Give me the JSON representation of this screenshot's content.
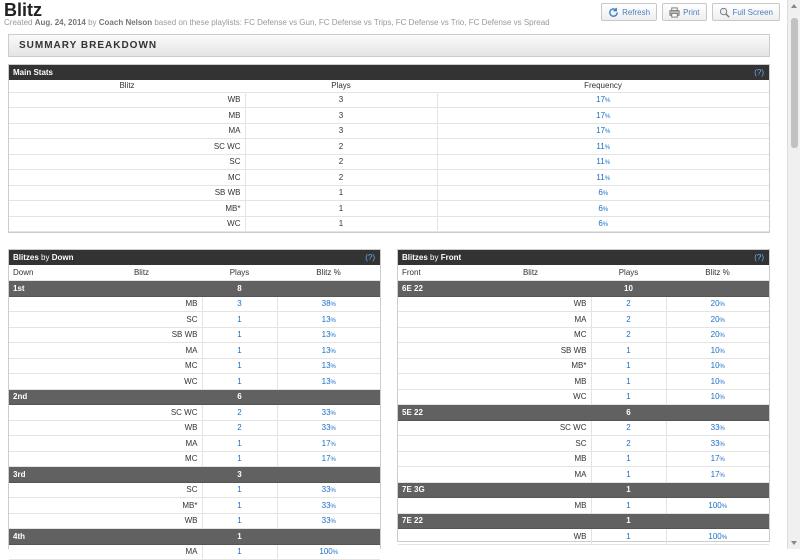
{
  "header": {
    "title": "Blitz",
    "created_prefix": "Created",
    "created_date": "Aug. 24, 2014",
    "by_word": "by",
    "author": "Coach Nelson",
    "playlists_text": "based on these playlists: FC Defense vs Gun, FC Defense vs Trips, FC Defense vs Trio, FC Defense vs Spread"
  },
  "buttons": {
    "refresh": "Refresh",
    "print": "Print",
    "fullscreen": "Full Screen"
  },
  "summary_title": "SUMMARY BREAKDOWN",
  "help_label": "(?)",
  "pct_suffix": "%",
  "main_stats": {
    "title": "Main Stats",
    "headers": [
      "Blitz",
      "Plays",
      "Frequency"
    ],
    "rows": [
      {
        "blitz": "WB",
        "plays": "3",
        "freq": "17"
      },
      {
        "blitz": "MB",
        "plays": "3",
        "freq": "17"
      },
      {
        "blitz": "MA",
        "plays": "3",
        "freq": "17"
      },
      {
        "blitz": "SC WC",
        "plays": "2",
        "freq": "11"
      },
      {
        "blitz": "SC",
        "plays": "2",
        "freq": "11"
      },
      {
        "blitz": "MC",
        "plays": "2",
        "freq": "11"
      },
      {
        "blitz": "SB WB",
        "plays": "1",
        "freq": "6"
      },
      {
        "blitz": "MB*",
        "plays": "1",
        "freq": "6"
      },
      {
        "blitz": "WC",
        "plays": "1",
        "freq": "6"
      }
    ]
  },
  "by_down": {
    "title_a": "Blitzes",
    "title_by": "by",
    "title_b": "Down",
    "headers": [
      "Down",
      "Blitz",
      "Plays",
      "Blitz %"
    ],
    "groups": [
      {
        "name": "1st",
        "total": "8",
        "rows": [
          {
            "blitz": "MB",
            "plays": "3",
            "pct": "38"
          },
          {
            "blitz": "SC",
            "plays": "1",
            "pct": "13"
          },
          {
            "blitz": "SB WB",
            "plays": "1",
            "pct": "13"
          },
          {
            "blitz": "MA",
            "plays": "1",
            "pct": "13"
          },
          {
            "blitz": "MC",
            "plays": "1",
            "pct": "13"
          },
          {
            "blitz": "WC",
            "plays": "1",
            "pct": "13"
          }
        ]
      },
      {
        "name": "2nd",
        "total": "6",
        "rows": [
          {
            "blitz": "SC WC",
            "plays": "2",
            "pct": "33"
          },
          {
            "blitz": "WB",
            "plays": "2",
            "pct": "33"
          },
          {
            "blitz": "MA",
            "plays": "1",
            "pct": "17"
          },
          {
            "blitz": "MC",
            "plays": "1",
            "pct": "17"
          }
        ]
      },
      {
        "name": "3rd",
        "total": "3",
        "rows": [
          {
            "blitz": "SC",
            "plays": "1",
            "pct": "33"
          },
          {
            "blitz": "MB*",
            "plays": "1",
            "pct": "33"
          },
          {
            "blitz": "WB",
            "plays": "1",
            "pct": "33"
          }
        ]
      },
      {
        "name": "4th",
        "total": "1",
        "rows": [
          {
            "blitz": "MA",
            "plays": "1",
            "pct": "100"
          }
        ]
      }
    ]
  },
  "by_front": {
    "title_a": "Blitzes",
    "title_by": "by",
    "title_b": "Front",
    "headers": [
      "Front",
      "Blitz",
      "Plays",
      "Blitz %"
    ],
    "groups": [
      {
        "name": "6E 22",
        "total": "10",
        "rows": [
          {
            "blitz": "WB",
            "plays": "2",
            "pct": "20"
          },
          {
            "blitz": "MA",
            "plays": "2",
            "pct": "20"
          },
          {
            "blitz": "MC",
            "plays": "2",
            "pct": "20"
          },
          {
            "blitz": "SB WB",
            "plays": "1",
            "pct": "10"
          },
          {
            "blitz": "MB*",
            "plays": "1",
            "pct": "10"
          },
          {
            "blitz": "MB",
            "plays": "1",
            "pct": "10"
          },
          {
            "blitz": "WC",
            "plays": "1",
            "pct": "10"
          }
        ]
      },
      {
        "name": "5E 22",
        "total": "6",
        "rows": [
          {
            "blitz": "SC WC",
            "plays": "2",
            "pct": "33"
          },
          {
            "blitz": "SC",
            "plays": "2",
            "pct": "33"
          },
          {
            "blitz": "MB",
            "plays": "1",
            "pct": "17"
          },
          {
            "blitz": "MA",
            "plays": "1",
            "pct": "17"
          }
        ]
      },
      {
        "name": "7E 3G",
        "total": "1",
        "rows": [
          {
            "blitz": "MB",
            "plays": "1",
            "pct": "100"
          }
        ]
      },
      {
        "name": "7E 22",
        "total": "1",
        "rows": [
          {
            "blitz": "WB",
            "plays": "1",
            "pct": "100"
          }
        ]
      }
    ]
  }
}
